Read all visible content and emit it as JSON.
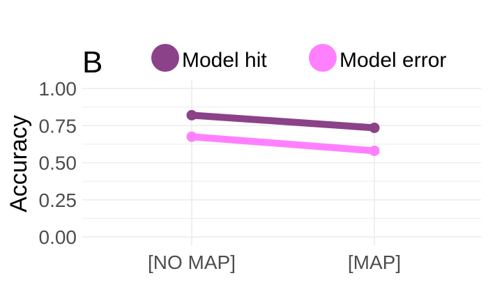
{
  "chart_data": {
    "type": "line",
    "panel_label": "B",
    "ylabel": "Accuracy",
    "categories": [
      "[NO MAP]",
      "[MAP]"
    ],
    "ylim": [
      0,
      1
    ],
    "y_ticks": [
      0,
      0.25,
      0.5,
      0.75,
      1
    ],
    "y_tick_labels": [
      "0.00",
      "0.25",
      "0.50",
      "0.75",
      "1.00"
    ],
    "grid": true,
    "legend_position": "top",
    "series": [
      {
        "name": "Model hit",
        "color": "#8b4289",
        "values": [
          0.82,
          0.735
        ]
      },
      {
        "name": "Model error",
        "color": "#ff80ff",
        "values": [
          0.675,
          0.58
        ]
      }
    ]
  }
}
